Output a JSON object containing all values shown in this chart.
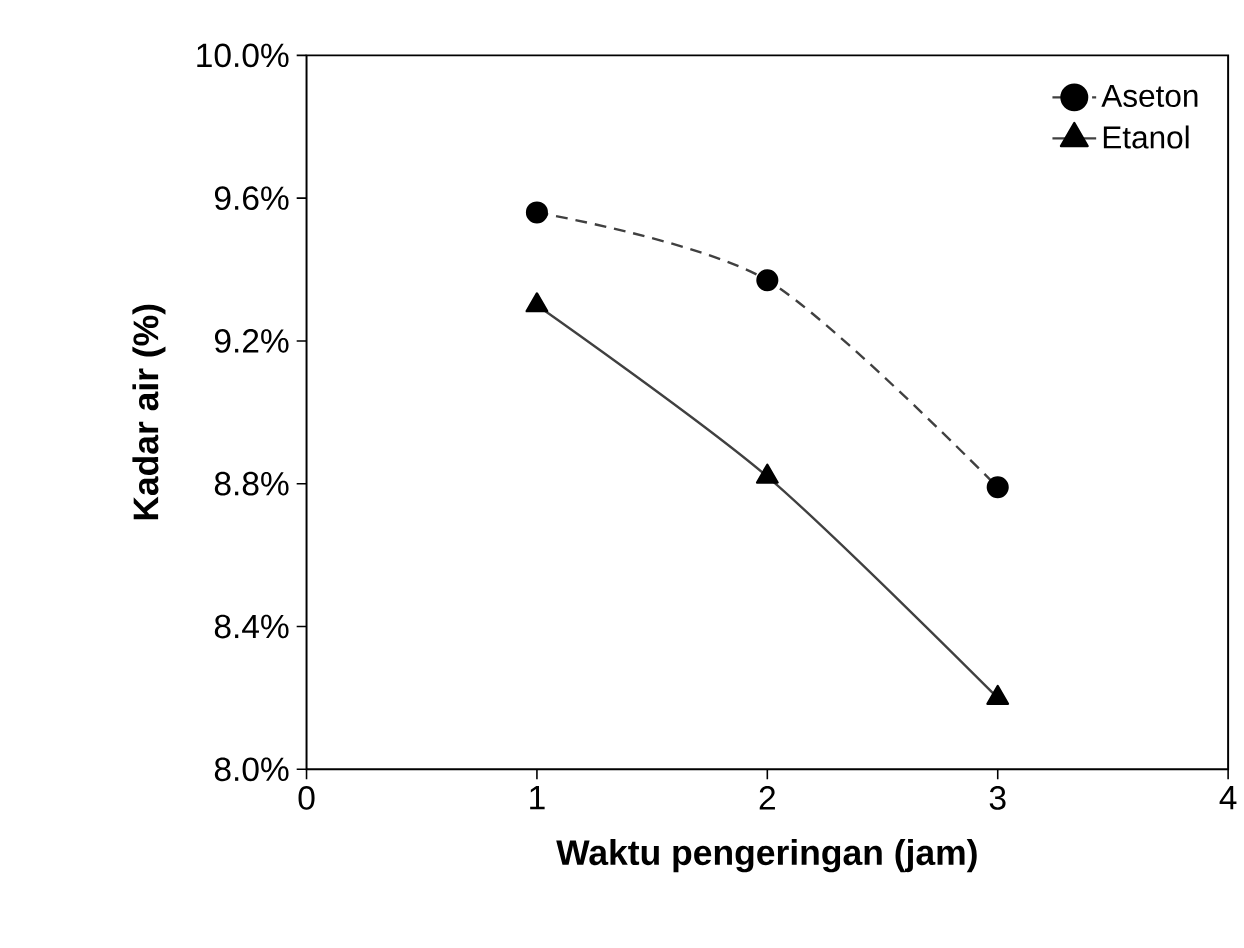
{
  "chart_data": {
    "type": "line",
    "xlabel": "Waktu pengeringan (jam)",
    "ylabel": "Kadar air (%)",
    "x": [
      1,
      2,
      3
    ],
    "series": [
      {
        "name": "Aseton",
        "color": "#000000",
        "marker": "circle",
        "line_style": "dashed",
        "values": [
          9.56,
          9.37,
          8.79
        ]
      },
      {
        "name": "Etanol",
        "color": "#000000",
        "marker": "triangle",
        "line_style": "solid",
        "values": [
          9.3,
          8.82,
          8.2
        ]
      }
    ],
    "xlim": [
      0,
      4
    ],
    "xticks": [
      0,
      1,
      2,
      3,
      4
    ],
    "ylim": [
      8.0,
      10.0
    ],
    "yticks": [
      {
        "value": 8.0,
        "label": "8.0%"
      },
      {
        "value": 8.4,
        "label": "8.4%"
      },
      {
        "value": 8.8,
        "label": "8.8%"
      },
      {
        "value": 9.2,
        "label": "9.2%"
      },
      {
        "value": 9.6,
        "label": "9.6%"
      },
      {
        "value": 10.0,
        "label": "10.0%"
      }
    ],
    "grid": false,
    "legend": "top right"
  }
}
